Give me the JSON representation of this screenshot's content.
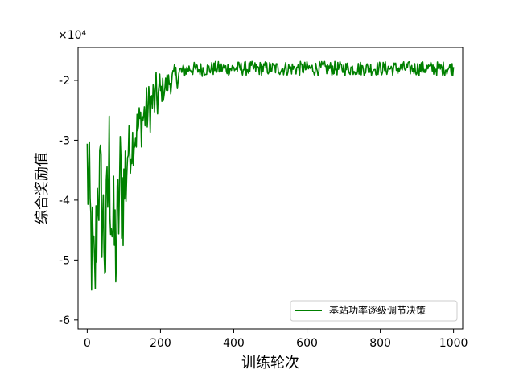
{
  "chart_data": {
    "type": "line",
    "xlabel": "训练轮次",
    "ylabel": "综合奖励值",
    "offset_label": "×10⁴",
    "xlim": [
      -25,
      1025
    ],
    "ylim": [
      -6.15,
      -1.45
    ],
    "xticks": [
      0,
      200,
      400,
      600,
      800,
      1000
    ],
    "xtick_labels": [
      "0",
      "200",
      "400",
      "600",
      "800",
      "1000"
    ],
    "yticks": [
      -6,
      -5,
      -4,
      -3,
      -2
    ],
    "ytick_labels": [
      "-6",
      "-5",
      "-4",
      "-3",
      "-2"
    ],
    "grid": false,
    "legend_position": "lower-right",
    "series": [
      {
        "name": "基站功率逐级调节决策",
        "color": "#008000",
        "x": [
          0,
          10,
          20,
          30,
          40,
          50,
          60,
          70,
          80,
          90,
          100,
          110,
          120,
          130,
          140,
          150,
          160,
          170,
          180,
          190,
          200,
          220,
          240,
          260,
          280,
          300,
          350,
          400,
          450,
          500,
          550,
          600,
          650,
          700,
          750,
          800,
          850,
          900,
          950,
          1000
        ],
        "values": [
          -3.4,
          -4.6,
          -5.5,
          -3.6,
          -4.1,
          -4.9,
          -3.3,
          -4.6,
          -4.8,
          -3.7,
          -3.9,
          -3.2,
          -3.1,
          -2.9,
          -2.8,
          -2.65,
          -2.55,
          -2.45,
          -2.35,
          -2.3,
          -2.2,
          -2.05,
          -1.95,
          -1.85,
          -1.8,
          -1.82,
          -1.8,
          -1.8,
          -1.8,
          -1.8,
          -1.8,
          -1.8,
          -1.8,
          -1.8,
          -1.8,
          -1.8,
          -1.8,
          -1.8,
          -1.8,
          -1.8
        ]
      }
    ]
  }
}
